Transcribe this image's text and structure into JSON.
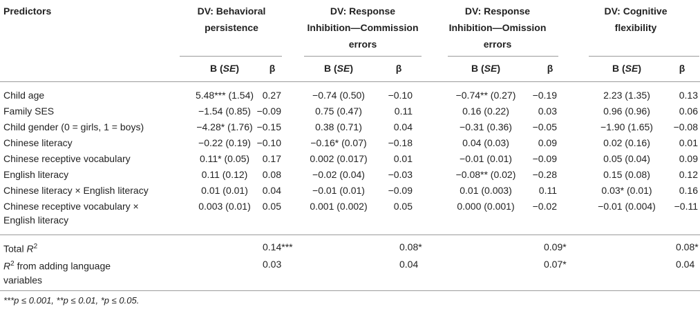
{
  "header": {
    "predictors": "Predictors",
    "dv_groups": [
      {
        "line1": "DV: Behavioral",
        "line2": "persistence",
        "line3": ""
      },
      {
        "line1": "DV: Response",
        "line2": "Inhibition—Commission",
        "line3": "errors"
      },
      {
        "line1": "DV: Response",
        "line2": "Inhibition—Omission",
        "line3": "errors"
      },
      {
        "line1": "DV: Cognitive",
        "line2": "flexibility",
        "line3": ""
      }
    ],
    "b_label": "B (",
    "se_label": "SE",
    "b_close": ")",
    "beta_label": "β"
  },
  "rows": [
    {
      "predictor": "Child age",
      "predictor2": "",
      "cells": [
        "5.48*** (1.54)",
        "0.27",
        "−0.74 (0.50)",
        "−0.10",
        "−0.74** (0.27)",
        "−0.19",
        "2.23 (1.35)",
        "0.13"
      ]
    },
    {
      "predictor": "Family SES",
      "predictor2": "",
      "cells": [
        "−1.54 (0.85)",
        "−0.09",
        "0.75 (0.47)",
        "0.11",
        "0.16 (0.22)",
        "0.03",
        "0.96 (0.96)",
        "0.06"
      ]
    },
    {
      "predictor": "Child gender (0 = girls, 1 = boys)",
      "predictor2": "",
      "cells": [
        "−4.28* (1.76)",
        "−0.15",
        "0.38 (0.71)",
        "0.04",
        "−0.31 (0.36)",
        "−0.05",
        "−1.90 (1.65)",
        "−0.08"
      ]
    },
    {
      "predictor": "Chinese literacy",
      "predictor2": "",
      "cells": [
        "−0.22 (0.19)",
        "−0.10",
        "−0.16* (0.07)",
        "−0.18",
        "0.04 (0.03)",
        "0.09",
        "0.02 (0.16)",
        "0.01"
      ]
    },
    {
      "predictor": "Chinese receptive vocabulary",
      "predictor2": "",
      "cells": [
        "0.11* (0.05)",
        "0.17",
        "0.002 (0.017)",
        "0.01",
        "−0.01 (0.01)",
        "−0.09",
        "0.05 (0.04)",
        "0.09"
      ]
    },
    {
      "predictor": "English literacy",
      "predictor2": "",
      "cells": [
        "0.11 (0.12)",
        "0.08",
        "−0.02 (0.04)",
        "−0.03",
        "−0.08** (0.02)",
        "−0.28",
        "0.15 (0.08)",
        "0.12"
      ]
    },
    {
      "predictor": "Chinese literacy × English literacy",
      "predictor2": "",
      "cells": [
        "0.01 (0.01)",
        "0.04",
        "−0.01 (0.01)",
        "−0.09",
        "0.01 (0.003)",
        "0.11",
        "0.03* (0.01)",
        "0.16"
      ]
    },
    {
      "predictor": "Chinese receptive vocabulary ×",
      "predictor2": "English literacy",
      "cells": [
        "0.003 (0.01)",
        "0.05",
        "0.001 (0.002)",
        "0.05",
        "0.000 (0.001)",
        "−0.02",
        "−0.01 (0.004)",
        "−0.11"
      ]
    }
  ],
  "summary": [
    {
      "label_pre": "Total ",
      "label_r": "R",
      "label_sup": "2",
      "label_post": "",
      "label2": "",
      "values": [
        "0.14***",
        "0.08*",
        "0.09*",
        "0.08*"
      ]
    },
    {
      "label_pre": "",
      "label_r": "R",
      "label_sup": "2",
      "label_post": " from adding language",
      "label2": "variables",
      "values": [
        "0.03",
        "0.04",
        "0.07*",
        "0.04"
      ]
    }
  ],
  "footnote": "***p ≤ 0.001, **p ≤ 0.01, *p ≤ 0.05."
}
